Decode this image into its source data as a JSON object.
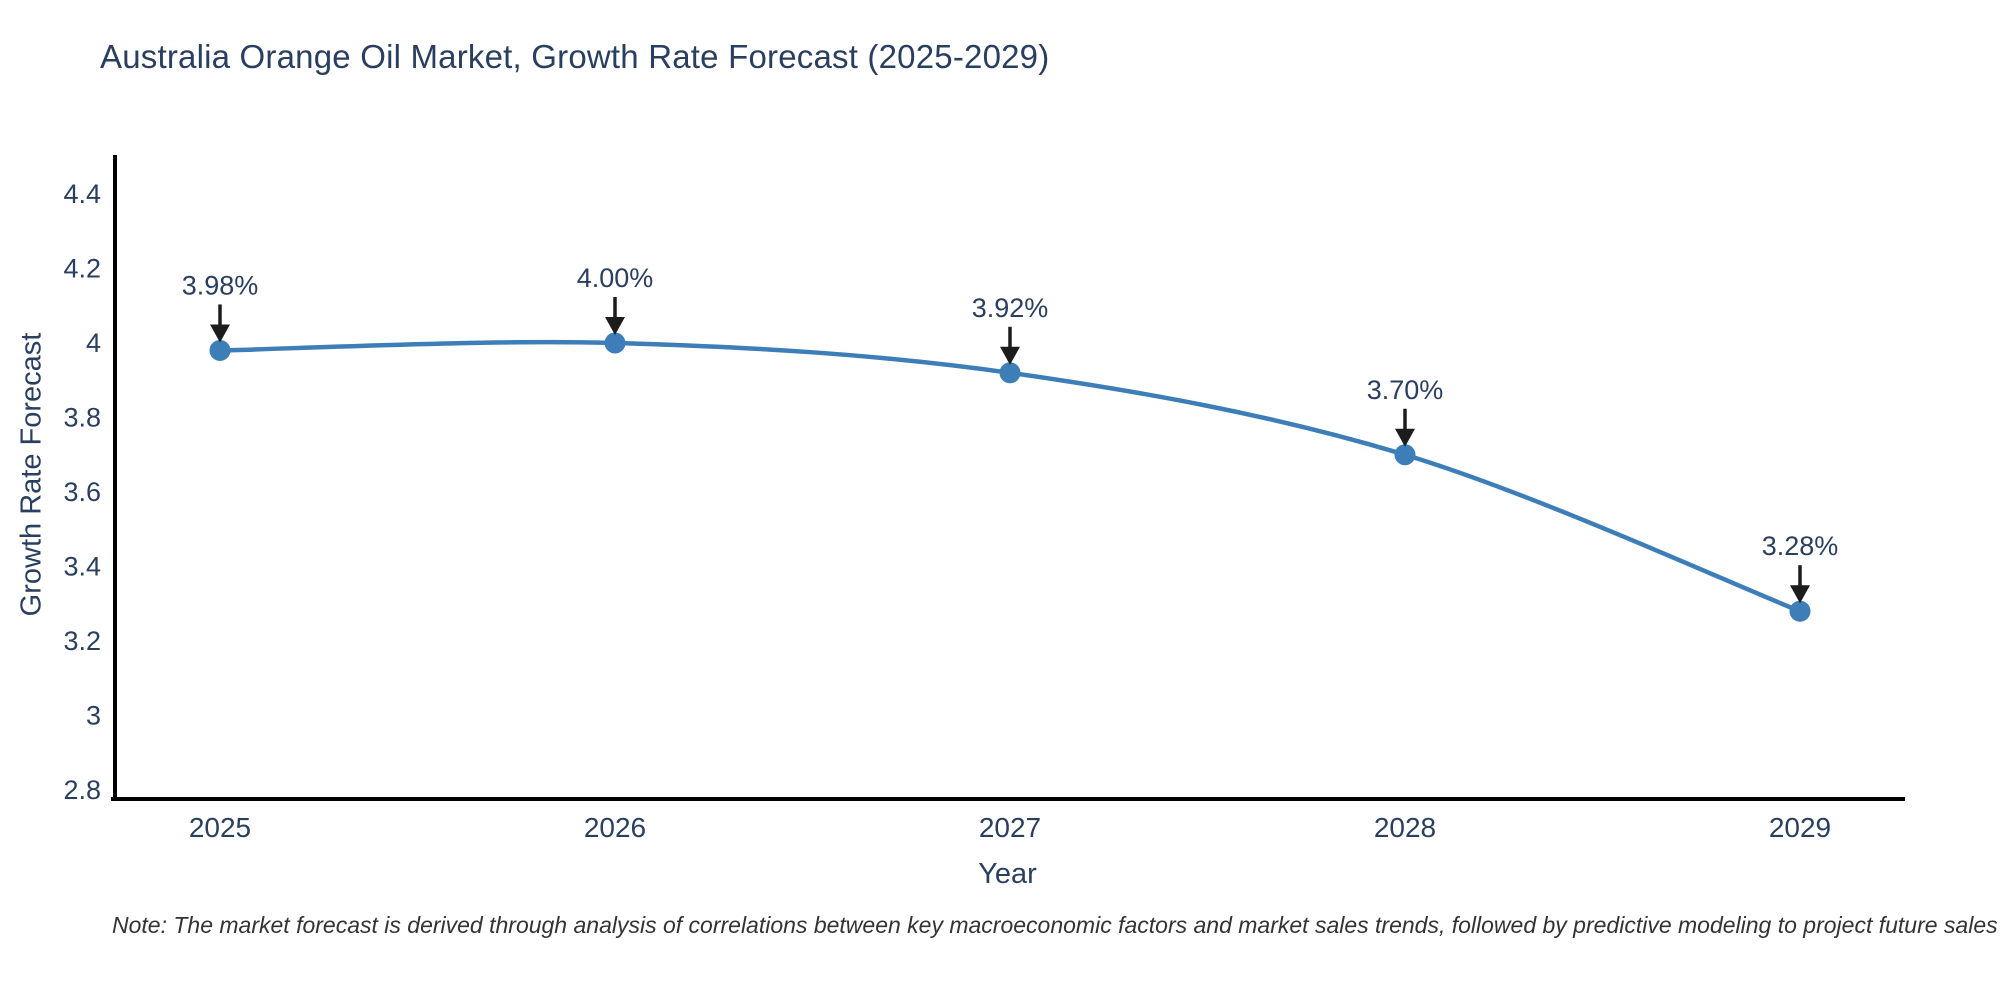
{
  "title": "Australia Orange Oil Market, Growth Rate Forecast (2025-2029)",
  "note": "Note: The market forecast is derived through analysis of correlations between key macroeconomic factors and market sales trends, followed by predictive modeling to project future sales",
  "chart_data": {
    "type": "line",
    "title": "Australia Orange Oil Market, Growth Rate Forecast (2025-2029)",
    "xlabel": "Year",
    "ylabel": "Growth Rate Forecast",
    "categories": [
      "2025",
      "2026",
      "2027",
      "2028",
      "2029"
    ],
    "values": [
      3.98,
      4.0,
      3.92,
      3.7,
      3.28
    ],
    "point_labels": [
      "3.98%",
      "4.00%",
      "3.92%",
      "3.70%",
      "3.28%"
    ],
    "y_tick_labels": [
      "2.8",
      "3",
      "3.2",
      "3.4",
      "3.6",
      "3.8",
      "4",
      "4.2",
      "4.4"
    ],
    "y_tick_values": [
      2.8,
      3.0,
      3.2,
      3.4,
      3.6,
      3.8,
      4.0,
      4.2,
      4.4
    ],
    "ylim": [
      2.8,
      4.4
    ],
    "grid": false,
    "legend_position": "none",
    "line_shape": "spline",
    "annotation_style": "value label with downward arrow to each point",
    "colors": {
      "line": "#3d7eb8",
      "marker": "#3d7eb8",
      "axis_line": "#000000",
      "tick_text": "#2a3f5f",
      "annotation_text": "#2a3f5f",
      "annotation_arrow": "#1c1c1c",
      "title_text": "#2a3f5f",
      "note_text": "#333333"
    }
  }
}
